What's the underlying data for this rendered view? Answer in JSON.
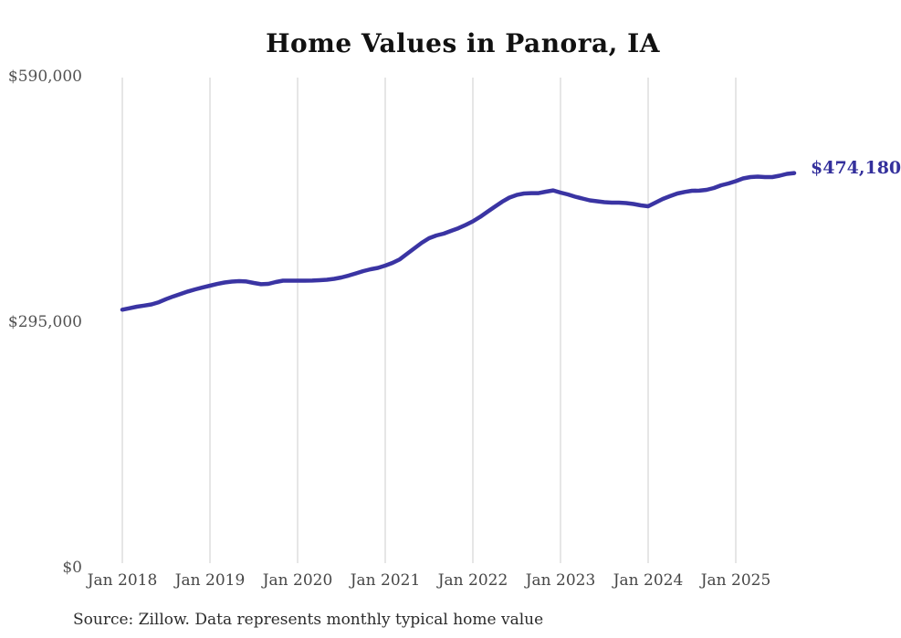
{
  "page": {
    "title": "Home Values in Panora, IA",
    "source_note": "Source: Zillow. Data represents monthly typical home value"
  },
  "colors": {
    "background": "#ffffff",
    "title": "#111111",
    "line": "#3a34a3",
    "end_label": "#34309c",
    "grid": "#cccccc",
    "ytick": "#525252",
    "xtick": "#464646",
    "source": "#2b2b2b"
  },
  "chart_data": {
    "type": "line",
    "title": "Home Values in Panora, IA",
    "xlabel": "",
    "ylabel": "",
    "ylim": [
      0,
      590000
    ],
    "grid": "vertical-only",
    "legend": null,
    "x": [
      "2018-01",
      "2018-02",
      "2018-03",
      "2018-04",
      "2018-05",
      "2018-06",
      "2018-07",
      "2018-08",
      "2018-09",
      "2018-10",
      "2018-11",
      "2018-12",
      "2019-01",
      "2019-02",
      "2019-03",
      "2019-04",
      "2019-05",
      "2019-06",
      "2019-07",
      "2019-08",
      "2019-09",
      "2019-10",
      "2019-11",
      "2019-12",
      "2020-01",
      "2020-02",
      "2020-03",
      "2020-04",
      "2020-05",
      "2020-06",
      "2020-07",
      "2020-08",
      "2020-09",
      "2020-10",
      "2020-11",
      "2020-12",
      "2021-01",
      "2021-02",
      "2021-03",
      "2021-04",
      "2021-05",
      "2021-06",
      "2021-07",
      "2021-08",
      "2021-09",
      "2021-10",
      "2021-11",
      "2021-12",
      "2022-01",
      "2022-02",
      "2022-03",
      "2022-04",
      "2022-05",
      "2022-06",
      "2022-07",
      "2022-08",
      "2022-09",
      "2022-10",
      "2022-11",
      "2022-12",
      "2023-01",
      "2023-02",
      "2023-03",
      "2023-04",
      "2023-05",
      "2023-06",
      "2023-07",
      "2023-08",
      "2023-09",
      "2023-10",
      "2023-11",
      "2023-12",
      "2024-01",
      "2024-02",
      "2024-03",
      "2024-04",
      "2024-05",
      "2024-06",
      "2024-07",
      "2024-08",
      "2024-09",
      "2024-10",
      "2024-11",
      "2024-12",
      "2025-01",
      "2025-02",
      "2025-03",
      "2025-04",
      "2025-05",
      "2025-06",
      "2025-07",
      "2025-08",
      "2025-09"
    ],
    "values": [
      310000,
      311800,
      313600,
      315000,
      316400,
      319000,
      322800,
      326000,
      329000,
      332000,
      334500,
      336800,
      338900,
      341000,
      342700,
      343800,
      344400,
      343900,
      342200,
      340600,
      341100,
      343200,
      344900,
      344900,
      344900,
      344900,
      345000,
      345400,
      346000,
      347100,
      348700,
      351000,
      353700,
      356400,
      358600,
      360300,
      363000,
      366300,
      370600,
      377200,
      383800,
      390400,
      395900,
      399200,
      401400,
      404700,
      407900,
      411800,
      416200,
      421600,
      427700,
      433700,
      439700,
      444700,
      447900,
      449600,
      450100,
      450100,
      451800,
      453400,
      450700,
      448500,
      445800,
      443600,
      441400,
      440300,
      439200,
      438700,
      438700,
      438100,
      437000,
      435400,
      434300,
      438700,
      443000,
      446500,
      449600,
      451500,
      452900,
      453000,
      454000,
      456200,
      459500,
      461700,
      464400,
      467700,
      469400,
      469900,
      469400,
      469400,
      471000,
      473200,
      474180
    ],
    "yticks": [
      {
        "value": 0,
        "label": "$0"
      },
      {
        "value": 295000,
        "label": "$295,000"
      },
      {
        "value": 590000,
        "label": "$590,000"
      }
    ],
    "xticks": [
      {
        "month": "2018-01",
        "label": "Jan 2018"
      },
      {
        "month": "2019-01",
        "label": "Jan 2019"
      },
      {
        "month": "2020-01",
        "label": "Jan 2020"
      },
      {
        "month": "2021-01",
        "label": "Jan 2021"
      },
      {
        "month": "2022-01",
        "label": "Jan 2022"
      },
      {
        "month": "2023-01",
        "label": "Jan 2023"
      },
      {
        "month": "2024-01",
        "label": "Jan 2024"
      },
      {
        "month": "2025-01",
        "label": "Jan 2025"
      }
    ],
    "end_annotation": {
      "label": "$474,180",
      "value": 474180
    }
  }
}
